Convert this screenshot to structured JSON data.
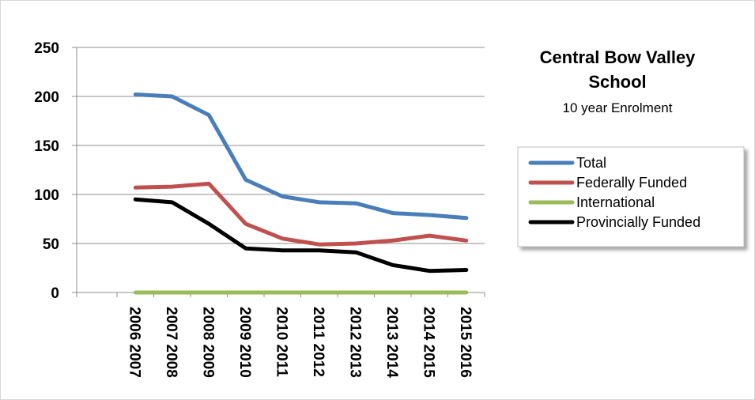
{
  "chart_data": {
    "type": "line",
    "title": "Central Bow Valley School",
    "title_lines": [
      "Central Bow Valley",
      "School"
    ],
    "subtitle": "10 year Enrolment",
    "categories": [
      "2006 2007",
      "2007 2008",
      "2008 2009",
      "2009 2010",
      "2010 2011",
      "2011 2012",
      "2012 2013",
      "2013 2014",
      "2014 2015",
      "2015 2016"
    ],
    "ylim": [
      0,
      250
    ],
    "yticks": [
      "0",
      "50",
      "100",
      "150",
      "200",
      "250"
    ],
    "grid": true,
    "legend_position": "right",
    "series": [
      {
        "name": "Total",
        "color": "#4a7ebb",
        "values": [
          202,
          200,
          181,
          115,
          98,
          92,
          91,
          81,
          79,
          76
        ]
      },
      {
        "name": "Federally Funded",
        "color": "#c0504d",
        "values": [
          107,
          108,
          111,
          70,
          55,
          49,
          50,
          53,
          58,
          53
        ]
      },
      {
        "name": "International",
        "color": "#9bbb59",
        "values": [
          0,
          0,
          0,
          0,
          0,
          0,
          0,
          0,
          0,
          0
        ]
      },
      {
        "name": "Provincially Funded",
        "color": "#000000",
        "values": [
          95,
          92,
          70,
          45,
          43,
          43,
          41,
          28,
          22,
          23
        ]
      }
    ]
  }
}
